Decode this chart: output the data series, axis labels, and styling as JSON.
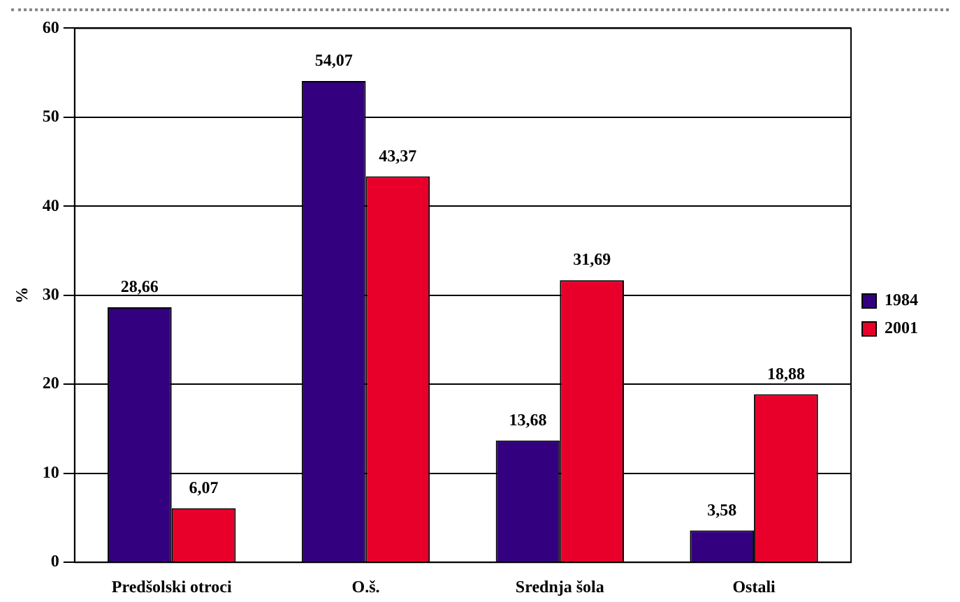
{
  "chart_data": {
    "type": "bar",
    "ylabel": "%",
    "categories": [
      "Predšolski otroci",
      "O.š.",
      "Srednja šola",
      "Ostali"
    ],
    "series": [
      {
        "name": "1984",
        "color": "#330080",
        "values": [
          28.66,
          54.07,
          13.68,
          3.58
        ],
        "value_labels": [
          "28,66",
          "54,07",
          "13,68",
          "3,58"
        ]
      },
      {
        "name": "2001",
        "color": "#e8002a",
        "values": [
          6.07,
          43.37,
          31.69,
          18.88
        ],
        "value_labels": [
          "6,07",
          "43,37",
          "31,69",
          "18,88"
        ]
      }
    ],
    "ylim": [
      0,
      60
    ],
    "yticks": [
      0,
      10,
      20,
      30,
      40,
      50,
      60
    ],
    "grid": "y",
    "legend": "right"
  }
}
